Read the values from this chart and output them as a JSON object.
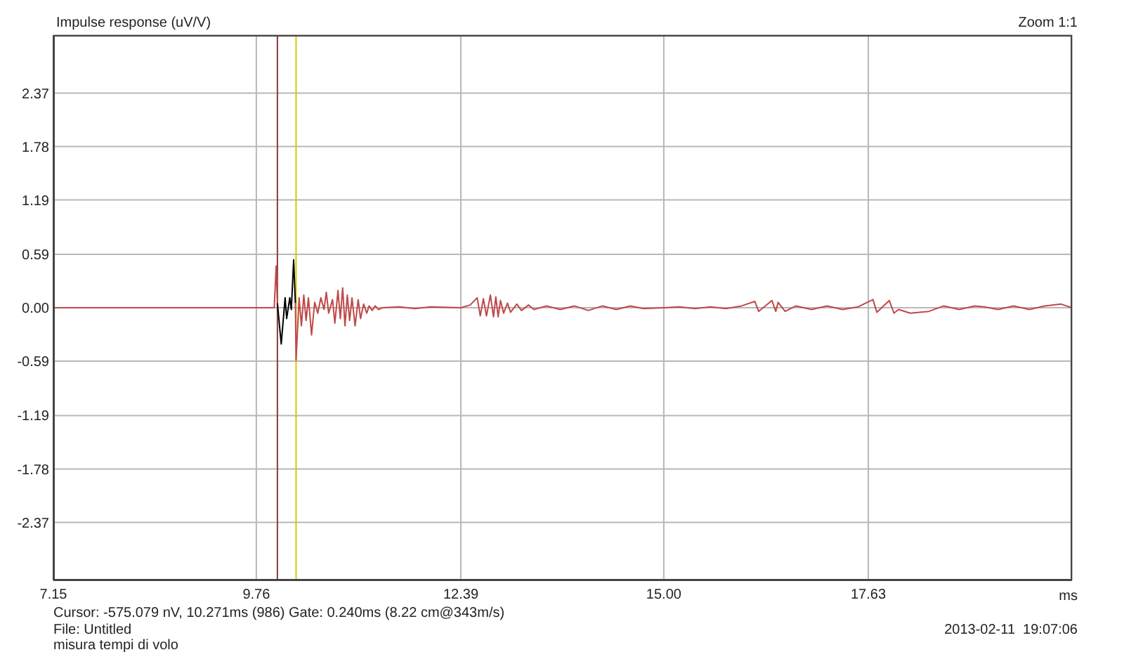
{
  "chart_data": {
    "type": "line",
    "title": "Impulse response (uV/V)",
    "xlabel": "ms",
    "xlim": [
      7.15,
      20.25
    ],
    "xticks": [
      7.15,
      9.76,
      12.39,
      {
        "value": 15,
        "label": "15.00"
      },
      17.63
    ],
    "ylim": [
      -3.01,
      3.01
    ],
    "yticks": [
      -2.37,
      -1.78,
      -1.19,
      -0.59,
      {
        "value": 0,
        "label": "0.00"
      },
      0.59,
      1.19,
      1.78,
      2.37
    ],
    "grid": true,
    "marker": "none",
    "line_style": "solid",
    "ref_lines": [
      {
        "axis": "x",
        "value": 10.031,
        "color": "#8b3a3a"
      },
      {
        "axis": "x",
        "value": 10.271,
        "color": "#d8c800"
      }
    ],
    "annotations": [
      "Zoom 1:1",
      "Cursor: -575.079 nV, 10.271ms (986)  Gate: 0.240ms (8.22 cm@343m/s)",
      "File: Untitled",
      "misura tempi di volo",
      "2013-02-11  19:07:06"
    ],
    "series": [
      {
        "color": "#c04848",
        "x": [
          7.15,
          9.99,
          10.015,
          10.031
        ],
        "values": [
          0,
          0,
          0.46,
          0.05
        ]
      },
      {
        "color": "#000000",
        "x": [
          10.031,
          10.08,
          10.13,
          10.15,
          10.19,
          10.21,
          10.24,
          10.262
        ],
        "values": [
          0.05,
          -0.4,
          0.11,
          -0.12,
          0.11,
          -0.02,
          0.53,
          0.05
        ]
      },
      {
        "color": "#c04848",
        "x": [
          10.262,
          10.271,
          10.31,
          10.34,
          10.37,
          10.4,
          10.43,
          10.47,
          10.51,
          10.55,
          10.59,
          10.63,
          10.66,
          10.69,
          10.74,
          10.77,
          10.81,
          10.84,
          10.87,
          10.9,
          10.93,
          10.96,
          10.99,
          11.03,
          11.07,
          11.1,
          11.14,
          11.18,
          11.21,
          11.25,
          11.29,
          11.33,
          11.38,
          11.6,
          11.8,
          12.0,
          12.39,
          12.51,
          12.6,
          12.64,
          12.68,
          12.72,
          12.77,
          12.81,
          12.84,
          12.87,
          12.9,
          12.94,
          12.99,
          13.03,
          13.11,
          13.17,
          13.26,
          13.33,
          13.49,
          13.67,
          13.85,
          14.03,
          14.21,
          14.39,
          14.57,
          14.74,
          15.0,
          15.2,
          15.4,
          15.6,
          15.8,
          16.0,
          16.17,
          16.22,
          16.39,
          16.44,
          16.47,
          16.56,
          16.7,
          16.9,
          17.1,
          17.3,
          17.5,
          17.69,
          17.74,
          17.9,
          17.96,
          18.02,
          18.17,
          18.41,
          18.6,
          18.8,
          19.0,
          19.12,
          19.3,
          19.5,
          19.7,
          19.9,
          20.11,
          20.25
        ],
        "values": [
          0.05,
          -0.58,
          0.11,
          -0.2,
          0.14,
          -0.14,
          0.11,
          -0.3,
          0.06,
          -0.06,
          0.11,
          -0.02,
          0.17,
          -0.06,
          0.09,
          -0.17,
          0.19,
          -0.12,
          0.22,
          -0.2,
          0.14,
          -0.14,
          0.11,
          -0.2,
          0.09,
          -0.12,
          0.04,
          -0.06,
          0.02,
          -0.03,
          0.02,
          -0.02,
          0,
          0.01,
          -0.01,
          0.01,
          0,
          0.03,
          0.11,
          -0.09,
          0.1,
          -0.09,
          0.14,
          -0.1,
          0.12,
          -0.1,
          0.08,
          -0.06,
          0.05,
          -0.05,
          0.04,
          -0.03,
          0.03,
          -0.02,
          0.02,
          -0.02,
          0.02,
          -0.03,
          0.02,
          -0.02,
          0.02,
          -0.01,
          0,
          0.01,
          -0.01,
          0.01,
          -0.01,
          0.02,
          0.07,
          -0.04,
          0.08,
          -0.04,
          0.06,
          -0.04,
          0.02,
          -0.02,
          0.02,
          -0.02,
          0.01,
          0.09,
          -0.05,
          0.08,
          -0.06,
          -0.02,
          -0.06,
          -0.04,
          0.02,
          -0.02,
          0.02,
          0.01,
          -0.02,
          0.02,
          -0.02,
          0.02,
          0.04,
          0
        ]
      }
    ]
  }
}
